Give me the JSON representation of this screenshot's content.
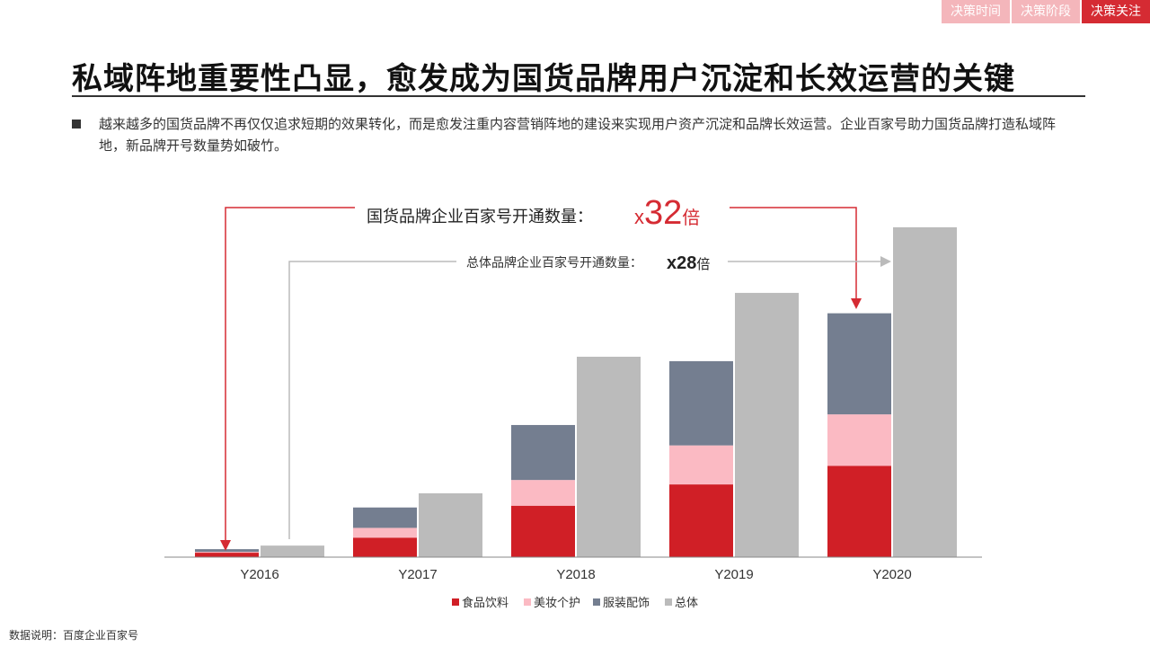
{
  "tabs": [
    {
      "label": "决策时间",
      "active": false
    },
    {
      "label": "决策阶段",
      "active": false
    },
    {
      "label": "决策关注",
      "active": true
    }
  ],
  "title": "私域阵地重要性凸显，愈发成为国货品牌用户沉淀和长效运营的关键",
  "bullet": "越来越多的国货品牌不再仅仅追求短期的效果转化，而是愈发注重内容营销阵地的建设来实现用户资产沉淀和品牌长效运营。企业百家号助力国货品牌打造私域阵地，新品牌开号数量势如破竹。",
  "footnote": "数据说明：百度企业百家号",
  "colors": {
    "accent": "#d52b33",
    "tab_inactive": "#f4b6bb"
  },
  "chart_data": {
    "type": "bar",
    "categories": [
      "Y2016",
      "Y2017",
      "Y2018",
      "Y2019",
      "Y2020"
    ],
    "stacked_series": [
      {
        "name": "食品饮料",
        "color": "#d01f26",
        "values": [
          5,
          22,
          58,
          82,
          103
        ]
      },
      {
        "name": "美妆个护",
        "color": "#fbbac3",
        "values": [
          1,
          11,
          29,
          44,
          58
        ]
      },
      {
        "name": "服装配饰",
        "color": "#747e90",
        "values": [
          3,
          23,
          62,
          95,
          114
        ]
      }
    ],
    "total_series": {
      "name": "总体",
      "color": "#bbbbbb",
      "values": [
        13,
        72,
        226,
        298,
        372
      ]
    },
    "annotations": {
      "main_label": "国货品牌企业百家号开通数量：",
      "main_multiplier_prefix": "x",
      "main_multiplier_value": "32",
      "main_multiplier_suffix": "倍",
      "sub_label": "总体品牌企业百家号开通数量：",
      "sub_multiplier": "x28",
      "sub_suffix": "倍"
    },
    "legend": [
      "食品饮料",
      "美妆个护",
      "服装配饰",
      "总体"
    ],
    "legend_position": "bottom",
    "ylim": [
      0,
      380
    ],
    "grid": false,
    "xlabel": "",
    "ylabel": ""
  }
}
